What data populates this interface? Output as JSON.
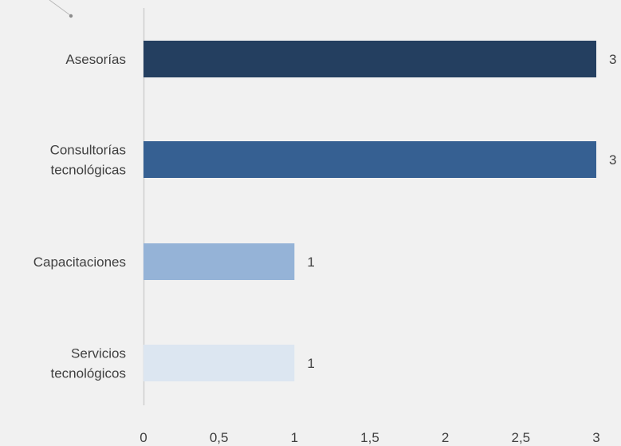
{
  "chart_data": {
    "type": "bar",
    "orientation": "horizontal",
    "categories": [
      [
        "Asesorías"
      ],
      [
        "Consultorías",
        "tecnológicas"
      ],
      [
        "Capacitaciones"
      ],
      [
        "Servicios",
        "tecnológicos"
      ]
    ],
    "values": [
      3,
      3,
      1,
      1
    ],
    "data_labels": [
      "3",
      "3",
      "1",
      "1"
    ],
    "bar_colors": [
      "#243f60",
      "#366092",
      "#95b3d7",
      "#dce6f1"
    ],
    "xlim": [
      0,
      3
    ],
    "xticks": [
      0,
      0.5,
      1,
      1.5,
      2,
      2.5,
      3
    ],
    "xtick_labels": [
      "0",
      "0,5",
      "1",
      "1,5",
      "2",
      "2,5",
      "3"
    ],
    "grid": false,
    "title": "",
    "xlabel": "",
    "ylabel": ""
  }
}
